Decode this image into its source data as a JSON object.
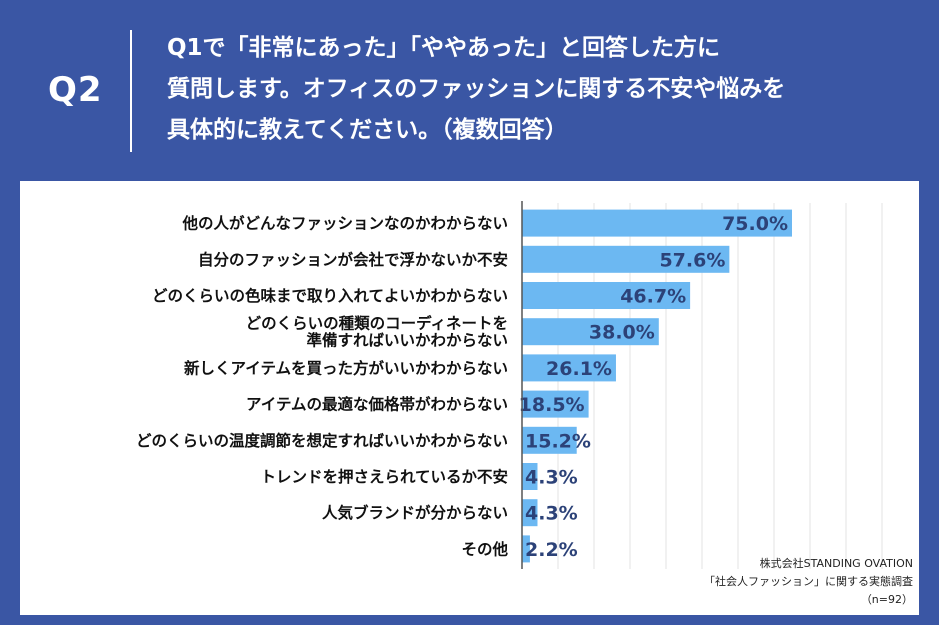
{
  "header": {
    "q_label": "Q2",
    "question": "Q1で「非常にあった」「ややあった」と回答した方に 質問します。オフィスのファッションに関する不安や悩みを 具体的に教えてください。（複数回答）",
    "question_lines": [
      "Q1で「非常にあった」「ややあった」と回答した方に",
      "質問します。オフィスのファッションに関する不安や悩みを",
      "具体的に教えてください。（複数回答）"
    ]
  },
  "source": {
    "company": "株式会社STANDING OVATION",
    "survey": "「社会人ファッション」に関する実態調査",
    "n": "（n=92）"
  },
  "chart_data": {
    "type": "bar",
    "orientation": "horizontal",
    "xlim": [
      0,
      100
    ],
    "grid": true,
    "categories": [
      [
        "他の人がどんなファッションなのかわからない"
      ],
      [
        "自分のファッションが会社で浮かないか不安"
      ],
      [
        "どのくらいの色味まで取り入れてよいかわからない"
      ],
      [
        "どのくらいの種類のコーディネートを",
        "準備すればいいかわからない"
      ],
      [
        "新しくアイテムを買った方がいいかわからない"
      ],
      [
        "アイテムの最適な価格帯がわからない"
      ],
      [
        "どのくらいの温度調節を想定すればいいかわからない"
      ],
      [
        "トレンドを押さえられているか不安"
      ],
      [
        "人気ブランドが分からない"
      ],
      [
        "その他"
      ]
    ],
    "values": [
      75.0,
      57.6,
      46.7,
      38.0,
      26.1,
      18.5,
      15.2,
      4.3,
      4.3,
      2.2
    ],
    "value_labels": [
      "75.0%",
      "57.6%",
      "46.7%",
      "38.0%",
      "26.1%",
      "18.5%",
      "15.2%",
      "4.3%",
      "4.3%",
      "2.2%"
    ],
    "colors": {
      "bar": "#6cb8f2",
      "value_text": "#2c4278",
      "background": "#3a56a4"
    }
  }
}
